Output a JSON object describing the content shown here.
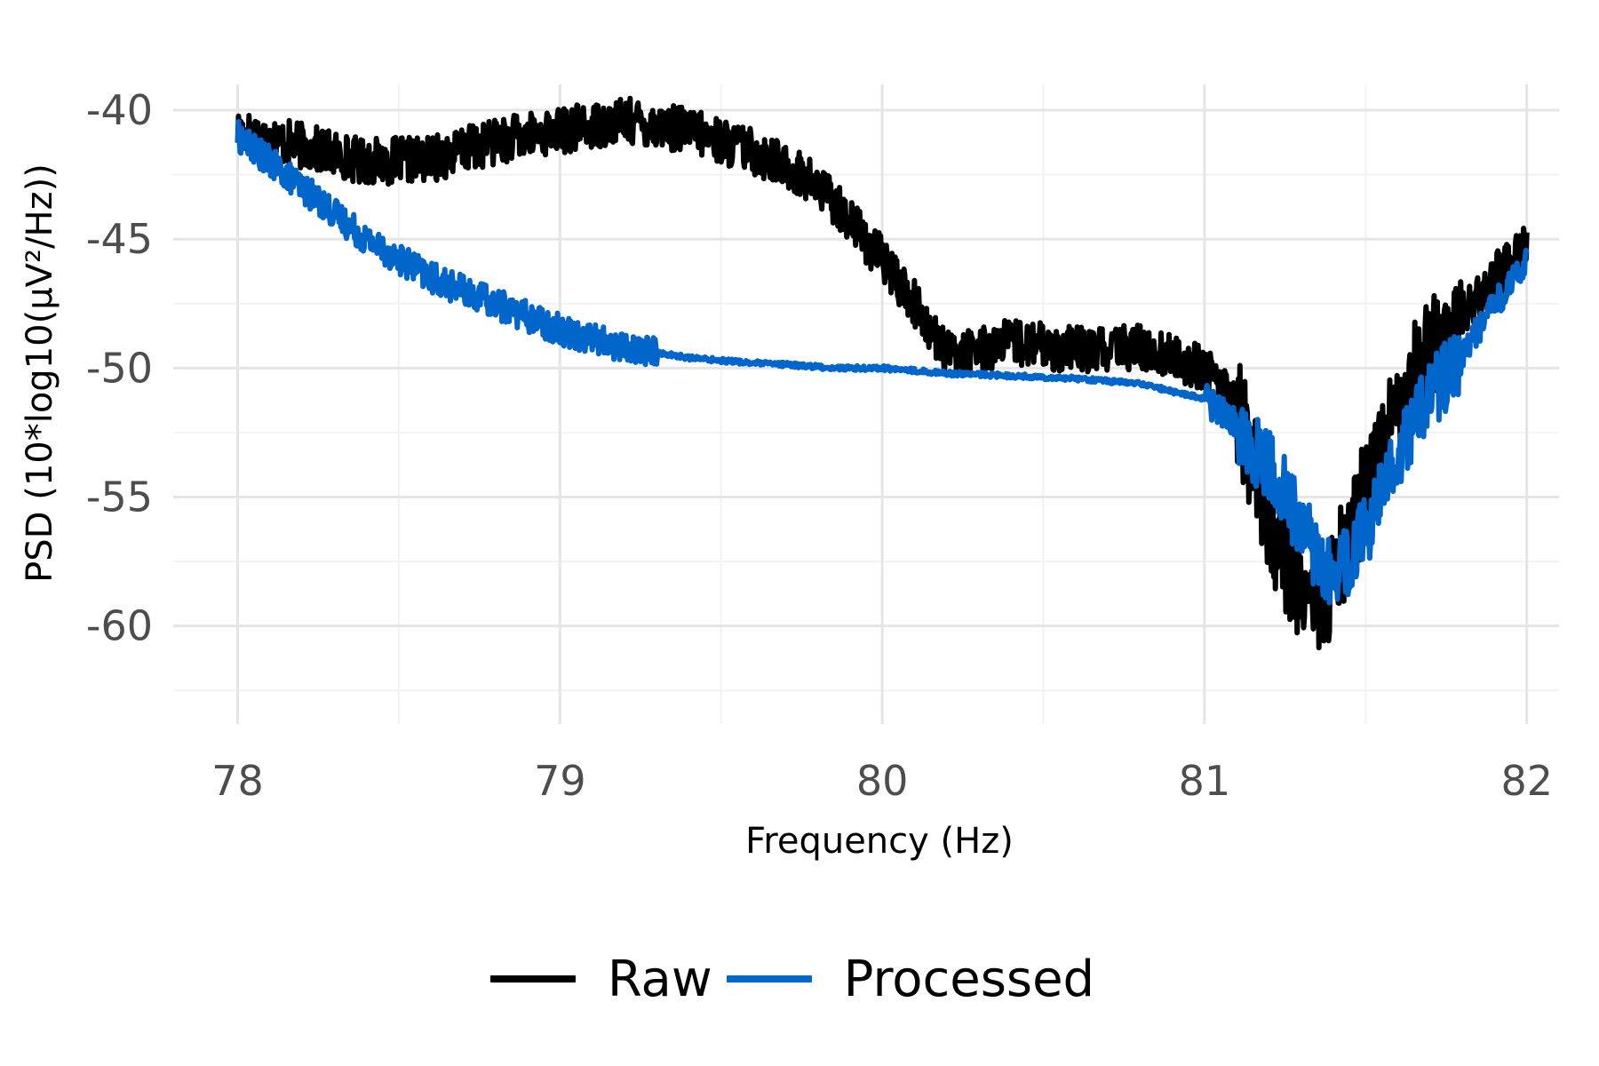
{
  "chart_data": {
    "type": "line",
    "title": "",
    "xlabel": "Frequency (Hz)",
    "ylabel": "PSD (10*log10(µV²/Hz))",
    "xlim": [
      77.8,
      82.1
    ],
    "ylim": [
      -63.8,
      -39.0
    ],
    "x_ticks": [
      78,
      79,
      80,
      81,
      82
    ],
    "x_tick_labels": [
      "78",
      "79",
      "80",
      "81",
      "82"
    ],
    "y_ticks": [
      -40,
      -45,
      -50,
      -55,
      -60
    ],
    "y_tick_labels": [
      "-40",
      "-45",
      "-50",
      "-55",
      "-60"
    ],
    "grid": true,
    "legend_position": "bottom",
    "x": [
      78.0,
      78.2,
      78.4,
      78.6,
      78.8,
      79.0,
      79.2,
      79.4,
      79.6,
      79.75,
      79.85,
      80.0,
      80.1,
      80.2,
      80.4,
      80.6,
      80.8,
      81.0,
      81.1,
      81.2,
      81.3,
      81.38,
      81.45,
      81.55,
      81.65,
      81.8,
      81.9,
      82.0
    ],
    "series": [
      {
        "name": "Raw",
        "color": "#000000",
        "values": [
          -40.8,
          -41.4,
          -42.0,
          -41.9,
          -41.2,
          -40.8,
          -40.4,
          -40.8,
          -41.6,
          -42.5,
          -43.5,
          -45.8,
          -47.5,
          -49.5,
          -49.0,
          -49.3,
          -49.2,
          -50.0,
          -51.5,
          -56.0,
          -58.5,
          -59.0,
          -56.5,
          -53.0,
          -50.0,
          -48.0,
          -46.5,
          -45.0
        ],
        "noise": 0.9
      },
      {
        "name": "Processed",
        "color": "#0066CC",
        "values": [
          -41.0,
          -43.0,
          -45.0,
          -46.5,
          -47.5,
          -48.5,
          -49.2,
          -49.6,
          -49.8,
          -49.9,
          -50.0,
          -50.0,
          -50.1,
          -50.2,
          -50.3,
          -50.4,
          -50.6,
          -51.2,
          -52.2,
          -53.8,
          -56.0,
          -58.0,
          -57.5,
          -55.0,
          -52.0,
          -49.5,
          -47.5,
          -46.0
        ],
        "noise": 0.6
      }
    ]
  }
}
